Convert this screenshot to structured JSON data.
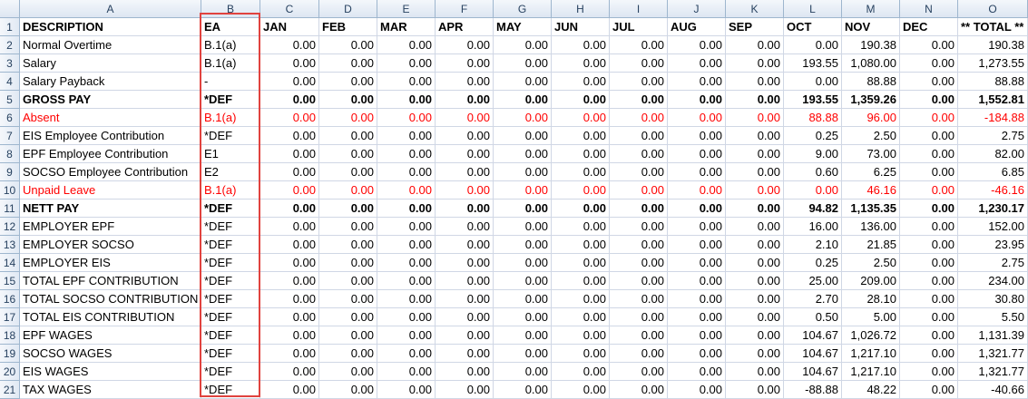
{
  "columns": [
    "A",
    "B",
    "C",
    "D",
    "E",
    "F",
    "G",
    "H",
    "I",
    "J",
    "K",
    "L",
    "M",
    "N",
    "O"
  ],
  "rows": [
    {
      "number": 1,
      "bold": true,
      "cells": [
        "DESCRIPTION",
        "EA",
        "JAN",
        "FEB",
        "MAR",
        "APR",
        "MAY",
        "JUN",
        "JUL",
        "AUG",
        "SEP",
        "OCT",
        "NOV",
        "DEC",
        "** TOTAL **"
      ]
    },
    {
      "number": 2,
      "cells": [
        "Normal Overtime",
        "B.1(a)",
        "0.00",
        "0.00",
        "0.00",
        "0.00",
        "0.00",
        "0.00",
        "0.00",
        "0.00",
        "0.00",
        "0.00",
        "190.38",
        "0.00",
        "190.38"
      ]
    },
    {
      "number": 3,
      "cells": [
        "Salary",
        "B.1(a)",
        "0.00",
        "0.00",
        "0.00",
        "0.00",
        "0.00",
        "0.00",
        "0.00",
        "0.00",
        "0.00",
        "193.55",
        "1,080.00",
        "0.00",
        "1,273.55"
      ]
    },
    {
      "number": 4,
      "cells": [
        "Salary Payback",
        "-",
        "0.00",
        "0.00",
        "0.00",
        "0.00",
        "0.00",
        "0.00",
        "0.00",
        "0.00",
        "0.00",
        "0.00",
        "88.88",
        "0.00",
        "88.88"
      ]
    },
    {
      "number": 5,
      "bold": true,
      "cells": [
        "GROSS PAY",
        "*DEF",
        "0.00",
        "0.00",
        "0.00",
        "0.00",
        "0.00",
        "0.00",
        "0.00",
        "0.00",
        "0.00",
        "193.55",
        "1,359.26",
        "0.00",
        "1,552.81"
      ]
    },
    {
      "number": 6,
      "color": "#ff0000",
      "cells": [
        "Absent",
        "B.1(a)",
        "0.00",
        "0.00",
        "0.00",
        "0.00",
        "0.00",
        "0.00",
        "0.00",
        "0.00",
        "0.00",
        "88.88",
        "96.00",
        "0.00",
        "-184.88"
      ]
    },
    {
      "number": 7,
      "cells": [
        "EIS Employee Contribution",
        "*DEF",
        "0.00",
        "0.00",
        "0.00",
        "0.00",
        "0.00",
        "0.00",
        "0.00",
        "0.00",
        "0.00",
        "0.25",
        "2.50",
        "0.00",
        "2.75"
      ]
    },
    {
      "number": 8,
      "cells": [
        "EPF Employee Contribution",
        "E1",
        "0.00",
        "0.00",
        "0.00",
        "0.00",
        "0.00",
        "0.00",
        "0.00",
        "0.00",
        "0.00",
        "9.00",
        "73.00",
        "0.00",
        "82.00"
      ]
    },
    {
      "number": 9,
      "cells": [
        "SOCSO Employee Contribution",
        "E2",
        "0.00",
        "0.00",
        "0.00",
        "0.00",
        "0.00",
        "0.00",
        "0.00",
        "0.00",
        "0.00",
        "0.60",
        "6.25",
        "0.00",
        "6.85"
      ]
    },
    {
      "number": 10,
      "color": "#ff0000",
      "cells": [
        "Unpaid Leave",
        "B.1(a)",
        "0.00",
        "0.00",
        "0.00",
        "0.00",
        "0.00",
        "0.00",
        "0.00",
        "0.00",
        "0.00",
        "0.00",
        "46.16",
        "0.00",
        "-46.16"
      ]
    },
    {
      "number": 11,
      "bold": true,
      "cells": [
        "NETT PAY",
        "*DEF",
        "0.00",
        "0.00",
        "0.00",
        "0.00",
        "0.00",
        "0.00",
        "0.00",
        "0.00",
        "0.00",
        "94.82",
        "1,135.35",
        "0.00",
        "1,230.17"
      ]
    },
    {
      "number": 12,
      "cells": [
        "EMPLOYER EPF",
        "*DEF",
        "0.00",
        "0.00",
        "0.00",
        "0.00",
        "0.00",
        "0.00",
        "0.00",
        "0.00",
        "0.00",
        "16.00",
        "136.00",
        "0.00",
        "152.00"
      ]
    },
    {
      "number": 13,
      "cells": [
        "EMPLOYER SOCSO",
        "*DEF",
        "0.00",
        "0.00",
        "0.00",
        "0.00",
        "0.00",
        "0.00",
        "0.00",
        "0.00",
        "0.00",
        "2.10",
        "21.85",
        "0.00",
        "23.95"
      ]
    },
    {
      "number": 14,
      "cells": [
        "EMPLOYER EIS",
        "*DEF",
        "0.00",
        "0.00",
        "0.00",
        "0.00",
        "0.00",
        "0.00",
        "0.00",
        "0.00",
        "0.00",
        "0.25",
        "2.50",
        "0.00",
        "2.75"
      ]
    },
    {
      "number": 15,
      "cells": [
        "TOTAL EPF CONTRIBUTION",
        "*DEF",
        "0.00",
        "0.00",
        "0.00",
        "0.00",
        "0.00",
        "0.00",
        "0.00",
        "0.00",
        "0.00",
        "25.00",
        "209.00",
        "0.00",
        "234.00"
      ]
    },
    {
      "number": 16,
      "cells": [
        "TOTAL SOCSO CONTRIBUTION",
        "*DEF",
        "0.00",
        "0.00",
        "0.00",
        "0.00",
        "0.00",
        "0.00",
        "0.00",
        "0.00",
        "0.00",
        "2.70",
        "28.10",
        "0.00",
        "30.80"
      ]
    },
    {
      "number": 17,
      "cells": [
        "TOTAL EIS CONTRIBUTION",
        "*DEF",
        "0.00",
        "0.00",
        "0.00",
        "0.00",
        "0.00",
        "0.00",
        "0.00",
        "0.00",
        "0.00",
        "0.50",
        "5.00",
        "0.00",
        "5.50"
      ]
    },
    {
      "number": 18,
      "cells": [
        "EPF WAGES",
        "*DEF",
        "0.00",
        "0.00",
        "0.00",
        "0.00",
        "0.00",
        "0.00",
        "0.00",
        "0.00",
        "0.00",
        "104.67",
        "1,026.72",
        "0.00",
        "1,131.39"
      ]
    },
    {
      "number": 19,
      "cells": [
        "SOCSO WAGES",
        "*DEF",
        "0.00",
        "0.00",
        "0.00",
        "0.00",
        "0.00",
        "0.00",
        "0.00",
        "0.00",
        "0.00",
        "104.67",
        "1,217.10",
        "0.00",
        "1,321.77"
      ]
    },
    {
      "number": 20,
      "cells": [
        "EIS WAGES",
        "*DEF",
        "0.00",
        "0.00",
        "0.00",
        "0.00",
        "0.00",
        "0.00",
        "0.00",
        "0.00",
        "0.00",
        "104.67",
        "1,217.10",
        "0.00",
        "1,321.77"
      ]
    },
    {
      "number": 21,
      "cells": [
        "TAX WAGES",
        "*DEF",
        "0.00",
        "0.00",
        "0.00",
        "0.00",
        "0.00",
        "0.00",
        "0.00",
        "0.00",
        "0.00",
        "-88.88",
        "48.22",
        "0.00",
        "-40.66"
      ]
    }
  ]
}
